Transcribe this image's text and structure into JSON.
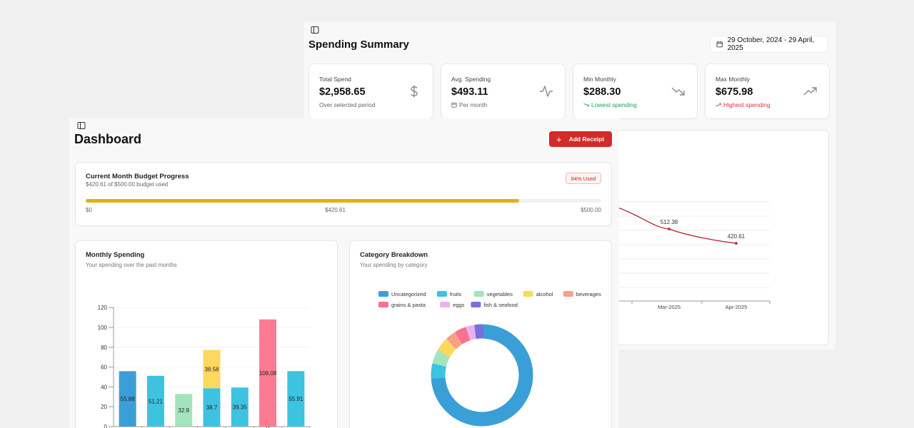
{
  "spending_summary": {
    "title": "Spending Summary",
    "date_range": "29 October, 2024 - 29 April, 2025",
    "stats": [
      {
        "label": "Total Spend",
        "value": "$2,958.65",
        "sub": "Over selected period",
        "icon": "dollar-icon",
        "sub_icon": ""
      },
      {
        "label": "Avg. Spending",
        "value": "$493.11",
        "sub": "Per month",
        "icon": "activity-icon",
        "sub_icon": "calendar-icon"
      },
      {
        "label": "Min Monthly",
        "value": "$288.30",
        "sub": "Lowest spending",
        "icon": "trending-down-icon",
        "sub_icon": "trending-down-icon"
      },
      {
        "label": "Max Monthly",
        "value": "$675.98",
        "sub": "Highest spending",
        "icon": "trending-up-icon",
        "sub_icon": "trending-up-icon"
      }
    ],
    "trend_chart": {
      "type": "line",
      "x_labels": [
        "Mar-2025",
        "Apr-2025"
      ],
      "points": [
        {
          "x": "Mar-2025",
          "y": 512.38,
          "label": "512.38"
        },
        {
          "x": "Apr-2025",
          "y": 420.61,
          "label": "420.61"
        }
      ],
      "color": "#b5202a"
    }
  },
  "dashboard": {
    "title": "Dashboard",
    "add_receipt_label": "Add Receipt",
    "budget": {
      "title": "Current Month Budget Progress",
      "subtitle": "$420.61 of $500.00 budget used",
      "badge": "84% Used",
      "progress": 0.8412,
      "min_label": "$0",
      "current_label": "$420.61",
      "max_label": "$500.00",
      "bar_color": "#e6b012"
    },
    "monthly_card": {
      "title": "Monthly Spending",
      "subtitle": "Your spending over the past months"
    },
    "category_card": {
      "title": "Category Breakdown",
      "subtitle": "Your spending by category"
    }
  },
  "chart_data": [
    {
      "type": "bar",
      "stacked": true,
      "ylim": [
        0,
        120
      ],
      "yticks": [
        0,
        20,
        40,
        60,
        80,
        100,
        120
      ],
      "bars": [
        {
          "segments": [
            {
              "value": 55.88,
              "label": "55.88",
              "color": "#3a9fd6"
            }
          ]
        },
        {
          "segments": [
            {
              "value": 51.21,
              "label": "51.21",
              "color": "#3dc3e0"
            }
          ]
        },
        {
          "segments": [
            {
              "value": 32.9,
              "label": "32.9",
              "color": "#a3e3bd"
            }
          ]
        },
        {
          "segments": [
            {
              "value": 38.7,
              "label": "38.7",
              "color": "#3dc3e0"
            },
            {
              "value": 38.58,
              "label": "38.58",
              "color": "#fcd95d"
            }
          ]
        },
        {
          "segments": [
            {
              "value": 39.35,
              "label": "39.35",
              "color": "#3dc3e0"
            }
          ]
        },
        {
          "segments": [
            {
              "value": 0,
              "label": "0",
              "color": "#3dc3e0"
            },
            {
              "value": 108.08,
              "label": "108.08",
              "color": "#fc7b93"
            }
          ]
        },
        {
          "segments": [
            {
              "value": 55.91,
              "label": "55.91",
              "color": "#3dc3e0"
            }
          ]
        }
      ]
    },
    {
      "type": "pie",
      "donut": true,
      "legend": [
        {
          "name": "Uncategorized",
          "color": "#3a9fd6"
        },
        {
          "name": "fruits",
          "color": "#3dc3e0"
        },
        {
          "name": "vegetables",
          "color": "#a3e3bd"
        },
        {
          "name": "alcohol",
          "color": "#fcd95d"
        },
        {
          "name": "beverages",
          "color": "#f7a08a"
        },
        {
          "name": "grains & pasta",
          "color": "#f6728f"
        },
        {
          "name": "eggs",
          "color": "#e8b2ec"
        },
        {
          "name": "fish & seafood",
          "color": "#7b6fe0"
        }
      ],
      "slices": [
        {
          "name": "Uncategorized",
          "value": 2100
        },
        {
          "name": "fruits",
          "value": 120
        },
        {
          "name": "vegetables",
          "value": 110
        },
        {
          "name": "alcohol",
          "value": 110
        },
        {
          "name": "beverages",
          "value": 80
        },
        {
          "name": "grains & pasta",
          "value": 90
        },
        {
          "name": "eggs",
          "value": 60
        },
        {
          "name": "fish & seafood",
          "value": 65
        }
      ]
    }
  ]
}
